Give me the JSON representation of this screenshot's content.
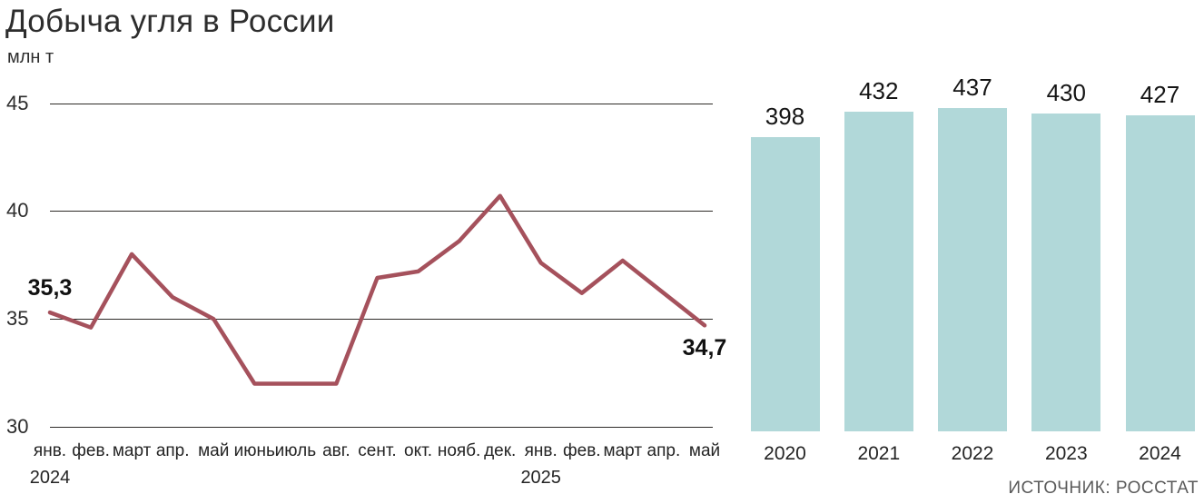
{
  "header": {
    "title": "Добыча угля в России",
    "unit": "млн т"
  },
  "source": "ИСТОЧНИК: РОССТАТ",
  "colors": {
    "line": "#a5515c",
    "bar": "#b1d8d9",
    "grid": "#2e2b28",
    "text": "#1e1e1e",
    "source_text": "#5a5a5a"
  },
  "chart_data": [
    {
      "type": "line",
      "title": "Добыча угля в России (помесячно)",
      "ylabel": "млн т",
      "x": [
        "янв.",
        "фев.",
        "март",
        "апр.",
        "май",
        "июнь",
        "июль",
        "авг.",
        "сент.",
        "окт.",
        "нояб.",
        "дек.",
        "янв.",
        "фев.",
        "март",
        "апр.",
        "май"
      ],
      "values": [
        35.3,
        34.6,
        38.0,
        36.0,
        35.0,
        32.0,
        32.0,
        32.0,
        36.9,
        37.2,
        38.6,
        40.7,
        37.6,
        36.2,
        37.7,
        36.2,
        34.7
      ],
      "year_breaks": [
        {
          "index": 0,
          "label": "2024"
        },
        {
          "index": 12,
          "label": "2025"
        }
      ],
      "yticks": [
        45,
        40,
        35,
        30
      ],
      "ylim": [
        29.8,
        45.5
      ],
      "grid": true,
      "legend": "none",
      "annotations": [
        {
          "index": 0,
          "label": "35,3",
          "position": "above"
        },
        {
          "index": 16,
          "label": "34,7",
          "position": "below"
        }
      ]
    },
    {
      "type": "bar",
      "title": "Добыча угля в России (по годам)",
      "categories": [
        "2020",
        "2021",
        "2022",
        "2023",
        "2024"
      ],
      "values": [
        398,
        432,
        437,
        430,
        427
      ],
      "ylim": [
        0,
        437
      ],
      "grid": false,
      "legend": "none",
      "data_labels": true
    }
  ]
}
